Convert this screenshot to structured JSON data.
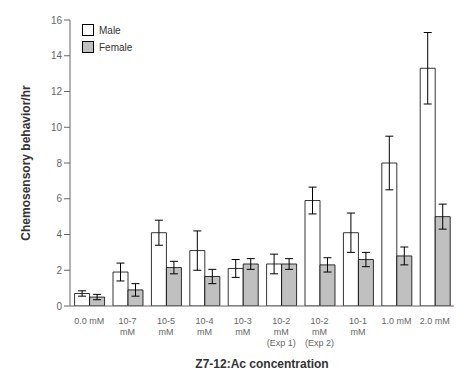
{
  "chart_data": {
    "type": "bar",
    "categories": [
      "0.0 mM",
      "10-7\nmM",
      "10-5\nmM",
      "10-4\nmM",
      "10-3\nmM",
      "10-2\nmM\n(Exp 1)",
      "10-2\nmM\n(Exp 2)",
      "10-1\nmM",
      "1.0 mM",
      "2.0 mM"
    ],
    "series": [
      {
        "name": "Male",
        "color": "#ffffff",
        "values": [
          0.7,
          1.9,
          4.1,
          3.1,
          2.1,
          2.35,
          5.9,
          4.1,
          8.0,
          13.3
        ],
        "errors": [
          0.15,
          0.5,
          0.7,
          1.1,
          0.5,
          0.55,
          0.75,
          1.1,
          1.5,
          2.0
        ]
      },
      {
        "name": "Female",
        "color": "#c0c0c0",
        "values": [
          0.5,
          0.9,
          2.15,
          1.65,
          2.35,
          2.35,
          2.3,
          2.6,
          2.8,
          5.0
        ],
        "errors": [
          0.15,
          0.35,
          0.35,
          0.4,
          0.3,
          0.3,
          0.4,
          0.4,
          0.5,
          0.7
        ]
      }
    ],
    "xlabel": "Z7-12:Ac concentration",
    "ylabel": "Chemosensory behavior/hr",
    "ylim": [
      0,
      16
    ],
    "yticks": [
      0,
      2,
      4,
      6,
      8,
      10,
      12,
      14,
      16
    ],
    "legend": "upper left",
    "grid": false
  }
}
